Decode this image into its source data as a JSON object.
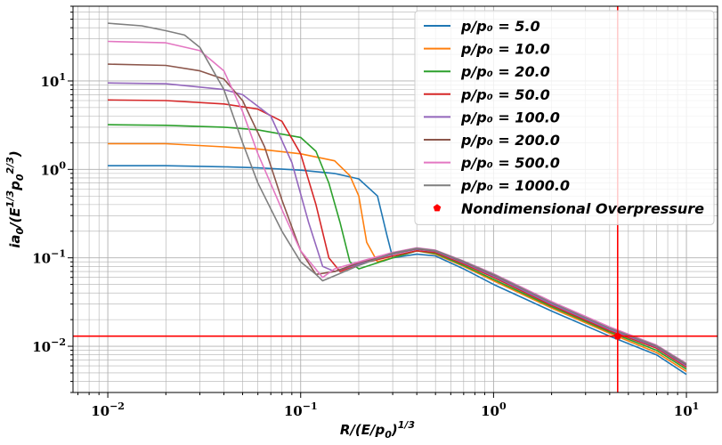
{
  "chart_data": {
    "type": "line",
    "xscale": "log",
    "yscale": "log",
    "xlim": [
      0.0066,
      14.5
    ],
    "ylim": [
      0.003,
      70
    ],
    "grid": true,
    "legend_position": "top-right",
    "xlabel": "R/(E/p₀)^{1/3}",
    "ylabel": "ia₀/(E^{1/3}p₀^{2/3})",
    "x_ticks": [
      {
        "value": 0.01,
        "base": "10",
        "exp": "−2"
      },
      {
        "value": 0.1,
        "base": "10",
        "exp": "−1"
      },
      {
        "value": 1,
        "base": "10",
        "exp": "0"
      },
      {
        "value": 10,
        "base": "10",
        "exp": "1"
      }
    ],
    "y_ticks": [
      {
        "value": 0.01,
        "base": "10",
        "exp": "−2"
      },
      {
        "value": 0.1,
        "base": "10",
        "exp": "−1"
      },
      {
        "value": 1,
        "base": "10",
        "exp": "0"
      },
      {
        "value": 10,
        "base": "10",
        "exp": "1"
      }
    ],
    "series": [
      {
        "name": "p/p₀ = 5.0",
        "color": "#1f77b4",
        "points": [
          [
            0.01,
            1.1
          ],
          [
            0.02,
            1.1
          ],
          [
            0.04,
            1.07
          ],
          [
            0.06,
            1.04
          ],
          [
            0.1,
            0.98
          ],
          [
            0.15,
            0.9
          ],
          [
            0.2,
            0.78
          ],
          [
            0.25,
            0.5
          ],
          [
            0.28,
            0.18
          ],
          [
            0.3,
            0.1
          ],
          [
            0.4,
            0.11
          ],
          [
            0.5,
            0.105
          ],
          [
            0.7,
            0.075
          ],
          [
            1,
            0.05
          ],
          [
            2,
            0.025
          ],
          [
            4,
            0.013
          ],
          [
            7,
            0.008
          ],
          [
            10,
            0.0048
          ]
        ]
      },
      {
        "name": "p/p₀ = 10.0",
        "color": "#ff7f0e",
        "points": [
          [
            0.01,
            1.95
          ],
          [
            0.02,
            1.95
          ],
          [
            0.04,
            1.8
          ],
          [
            0.06,
            1.7
          ],
          [
            0.1,
            1.5
          ],
          [
            0.15,
            1.25
          ],
          [
            0.18,
            0.85
          ],
          [
            0.2,
            0.5
          ],
          [
            0.22,
            0.15
          ],
          [
            0.25,
            0.09
          ],
          [
            0.3,
            0.1
          ],
          [
            0.4,
            0.12
          ],
          [
            0.5,
            0.11
          ],
          [
            0.7,
            0.08
          ],
          [
            1,
            0.055
          ],
          [
            2,
            0.027
          ],
          [
            4,
            0.014
          ],
          [
            7,
            0.0085
          ],
          [
            10,
            0.0052
          ]
        ]
      },
      {
        "name": "p/p₀ = 20.0",
        "color": "#2ca02c",
        "points": [
          [
            0.01,
            3.2
          ],
          [
            0.02,
            3.15
          ],
          [
            0.04,
            3.0
          ],
          [
            0.06,
            2.8
          ],
          [
            0.1,
            2.3
          ],
          [
            0.12,
            1.6
          ],
          [
            0.14,
            0.7
          ],
          [
            0.16,
            0.25
          ],
          [
            0.18,
            0.09
          ],
          [
            0.2,
            0.075
          ],
          [
            0.3,
            0.1
          ],
          [
            0.4,
            0.12
          ],
          [
            0.5,
            0.112
          ],
          [
            0.7,
            0.082
          ],
          [
            1,
            0.057
          ],
          [
            2,
            0.028
          ],
          [
            4,
            0.0145
          ],
          [
            7,
            0.009
          ],
          [
            10,
            0.0055
          ]
        ]
      },
      {
        "name": "p/p₀ = 50.0",
        "color": "#d62728",
        "points": [
          [
            0.01,
            6.1
          ],
          [
            0.02,
            6.0
          ],
          [
            0.04,
            5.5
          ],
          [
            0.06,
            4.8
          ],
          [
            0.08,
            3.5
          ],
          [
            0.1,
            1.5
          ],
          [
            0.12,
            0.4
          ],
          [
            0.14,
            0.1
          ],
          [
            0.16,
            0.07
          ],
          [
            0.2,
            0.085
          ],
          [
            0.3,
            0.105
          ],
          [
            0.4,
            0.12
          ],
          [
            0.5,
            0.115
          ],
          [
            0.7,
            0.085
          ],
          [
            1,
            0.06
          ],
          [
            2,
            0.029
          ],
          [
            4,
            0.015
          ],
          [
            7,
            0.0095
          ],
          [
            10,
            0.0058
          ]
        ]
      },
      {
        "name": "p/p₀ = 100.0",
        "color": "#9467bd",
        "points": [
          [
            0.01,
            9.5
          ],
          [
            0.02,
            9.3
          ],
          [
            0.04,
            8.0
          ],
          [
            0.05,
            7.0
          ],
          [
            0.07,
            4.0
          ],
          [
            0.09,
            1.2
          ],
          [
            0.11,
            0.25
          ],
          [
            0.13,
            0.08
          ],
          [
            0.15,
            0.07
          ],
          [
            0.2,
            0.085
          ],
          [
            0.3,
            0.11
          ],
          [
            0.4,
            0.125
          ],
          [
            0.5,
            0.118
          ],
          [
            0.7,
            0.088
          ],
          [
            1,
            0.062
          ],
          [
            2,
            0.03
          ],
          [
            4,
            0.0155
          ],
          [
            7,
            0.0098
          ],
          [
            10,
            0.006
          ]
        ]
      },
      {
        "name": "p/p₀ = 200.0",
        "color": "#8c564b",
        "points": [
          [
            0.01,
            15.5
          ],
          [
            0.02,
            15.0
          ],
          [
            0.03,
            13.0
          ],
          [
            0.04,
            10.5
          ],
          [
            0.05,
            6.0
          ],
          [
            0.065,
            1.8
          ],
          [
            0.08,
            0.45
          ],
          [
            0.1,
            0.12
          ],
          [
            0.12,
            0.065
          ],
          [
            0.15,
            0.07
          ],
          [
            0.2,
            0.088
          ],
          [
            0.3,
            0.112
          ],
          [
            0.4,
            0.127
          ],
          [
            0.5,
            0.12
          ],
          [
            0.7,
            0.09
          ],
          [
            1,
            0.064
          ],
          [
            2,
            0.031
          ],
          [
            4,
            0.016
          ],
          [
            7,
            0.01
          ],
          [
            10,
            0.0062
          ]
        ]
      },
      {
        "name": "p/p₀ = 500.0",
        "color": "#e377c2",
        "points": [
          [
            0.01,
            28.0
          ],
          [
            0.02,
            27.0
          ],
          [
            0.03,
            22.0
          ],
          [
            0.04,
            13.0
          ],
          [
            0.05,
            4.5
          ],
          [
            0.06,
            1.5
          ],
          [
            0.08,
            0.35
          ],
          [
            0.1,
            0.12
          ],
          [
            0.13,
            0.06
          ],
          [
            0.15,
            0.075
          ],
          [
            0.2,
            0.09
          ],
          [
            0.3,
            0.115
          ],
          [
            0.4,
            0.13
          ],
          [
            0.5,
            0.122
          ],
          [
            0.7,
            0.092
          ],
          [
            1,
            0.066
          ],
          [
            2,
            0.032
          ],
          [
            4,
            0.0165
          ],
          [
            7,
            0.0103
          ],
          [
            10,
            0.0064
          ]
        ]
      },
      {
        "name": "p/p₀ = 1000.0",
        "color": "#7f7f7f",
        "points": [
          [
            0.01,
            45.0
          ],
          [
            0.015,
            42.0
          ],
          [
            0.02,
            37.0
          ],
          [
            0.025,
            33.0
          ],
          [
            0.03,
            24.0
          ],
          [
            0.04,
            8.0
          ],
          [
            0.05,
            2.0
          ],
          [
            0.06,
            0.7
          ],
          [
            0.08,
            0.2
          ],
          [
            0.1,
            0.09
          ],
          [
            0.12,
            0.065
          ],
          [
            0.13,
            0.055
          ],
          [
            0.2,
            0.082
          ],
          [
            0.3,
            0.113
          ],
          [
            0.4,
            0.128
          ],
          [
            0.5,
            0.121
          ],
          [
            0.7,
            0.091
          ],
          [
            1,
            0.065
          ],
          [
            2,
            0.031
          ],
          [
            4,
            0.016
          ],
          [
            7,
            0.0101
          ],
          [
            10,
            0.0063
          ]
        ]
      }
    ],
    "marker_point": {
      "name": "Nondimensional Overpressure",
      "x": 4.4,
      "y": 0.013,
      "color": "#ff0000"
    },
    "reference_lines": {
      "vertical_x": 4.4,
      "horizontal_y": 0.013,
      "color": "#ff0000"
    }
  }
}
